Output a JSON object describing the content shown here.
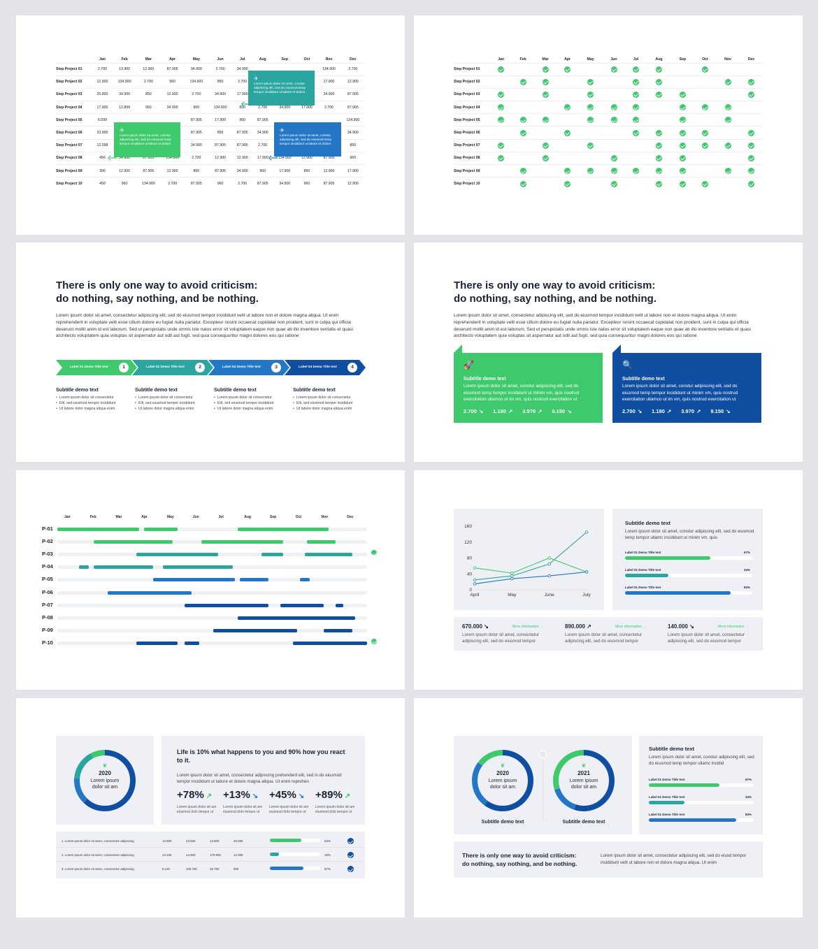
{
  "months": [
    "Jan",
    "Feb",
    "Mar",
    "Apr",
    "May",
    "Jun",
    "Jul",
    "Aug",
    "Sep",
    "Oct",
    "Nov",
    "Dec"
  ],
  "colors": {
    "green": "#3ec96d",
    "teal": "#2aa5a0",
    "blue": "#2377c6",
    "navy": "#0f4ea1",
    "dark": "#1b2333"
  },
  "slide1": {
    "rows": [
      {
        "label": "Step Project 01",
        "values": [
          "2.700",
          "13.900",
          "12.900",
          "87.905",
          "34.900",
          "2.700",
          "34.900",
          "",
          "",
          "",
          "134.900",
          "2.700"
        ]
      },
      {
        "label": "Step Project 02",
        "values": [
          "12.900",
          "134.900",
          "2.700",
          "960",
          "134.900",
          "850",
          "2.700",
          "",
          "",
          "",
          "17.900",
          "12.900"
        ]
      },
      {
        "label": "Step Project 03",
        "values": [
          "25.800",
          "34.900",
          "850",
          "12.900",
          "2.700",
          "34.900",
          "17.900",
          "",
          "",
          "",
          "34.900",
          "87.905"
        ]
      },
      {
        "label": "Step Project 04",
        "values": [
          "17.900",
          "12.899",
          "960",
          "34.900",
          "960",
          "134.900",
          "850",
          "2.700",
          "34.900",
          "17.900",
          "2.700",
          "87.905"
        ]
      },
      {
        "label": "Step Project 05",
        "values": [
          "6.099",
          "",
          "",
          "",
          "87.905",
          "17.900",
          "960",
          "87.905",
          "",
          "",
          "",
          "134.900"
        ]
      },
      {
        "label": "Step Project 06",
        "values": [
          "23.900",
          "",
          "",
          "",
          "87.905",
          "850",
          "87.905",
          "34.900",
          "",
          "",
          "",
          "34.900"
        ]
      },
      {
        "label": "Step Project 07",
        "values": [
          "12.098",
          "",
          "",
          "",
          "34.900",
          "87.905",
          "87.905",
          "2.700",
          "",
          "",
          "",
          "850"
        ]
      },
      {
        "label": "Step Project 08",
        "values": [
          "456",
          "34.900",
          "87.905",
          "134.900",
          "2.700",
          "12.900",
          "12.900",
          "17.900",
          "134.900",
          "12.900",
          "87.905",
          "960"
        ]
      },
      {
        "label": "Step Project 09",
        "values": [
          "300",
          "12.900",
          "87.905",
          "12.900",
          "850",
          "87.905",
          "34.900",
          "960",
          "17.900",
          "850",
          "12.900",
          "17.900"
        ]
      },
      {
        "label": "Step Project 10",
        "values": [
          "450",
          "960",
          "134.900",
          "2.700",
          "87.905",
          "960",
          "2.700",
          "87.905",
          "34.900",
          "960",
          "87.905",
          "12.900"
        ]
      }
    ],
    "callout_teal": "Lorem ipsum dolor sit amet, constur adipiscing elit, sed do eiusmod temp tempor incididunt ut labore et dolore",
    "callout_green": "Lorem ipsum dolor sit amet, constur adipiscing elit, sed do eiusmod temp tempor incididunt ut labore et dolore",
    "callout_blue": "Lorem ipsum dolor sit amet, constur adipiscing elit, sed do eiusmod temp tempor incididunt ut labore et dolore"
  },
  "slide2": {
    "rows": [
      {
        "label": "Step Project 01",
        "checks": [
          1,
          0,
          1,
          1,
          0,
          1,
          1,
          1,
          0,
          1,
          0,
          0
        ]
      },
      {
        "label": "Step Project 02",
        "checks": [
          0,
          1,
          1,
          0,
          1,
          0,
          1,
          1,
          0,
          0,
          1,
          1
        ]
      },
      {
        "label": "Step Project 03",
        "checks": [
          1,
          0,
          1,
          0,
          1,
          0,
          1,
          1,
          1,
          0,
          0,
          1
        ]
      },
      {
        "label": "Step Project 04",
        "checks": [
          1,
          0,
          0,
          1,
          1,
          1,
          1,
          0,
          1,
          1,
          1,
          0
        ]
      },
      {
        "label": "Step Project 05",
        "checks": [
          1,
          1,
          1,
          0,
          1,
          1,
          1,
          0,
          1,
          0,
          1,
          0
        ]
      },
      {
        "label": "Step Project 06",
        "checks": [
          0,
          1,
          0,
          1,
          0,
          0,
          1,
          1,
          1,
          1,
          0,
          1
        ]
      },
      {
        "label": "Step Project 07",
        "checks": [
          1,
          0,
          1,
          0,
          1,
          0,
          0,
          1,
          1,
          1,
          1,
          1
        ]
      },
      {
        "label": "Step Project 08",
        "checks": [
          1,
          0,
          1,
          0,
          0,
          1,
          0,
          1,
          1,
          0,
          0,
          1
        ]
      },
      {
        "label": "Step Project 09",
        "checks": [
          0,
          1,
          0,
          1,
          1,
          1,
          1,
          1,
          1,
          0,
          1,
          1
        ]
      },
      {
        "label": "Step Project 10",
        "checks": [
          0,
          1,
          0,
          1,
          0,
          1,
          0,
          1,
          1,
          1,
          0,
          1
        ]
      }
    ]
  },
  "slide3": {
    "title_line1": "There is only one way to avoid criticism:",
    "title_line2": "do nothing, say nothing, and be nothing.",
    "paragraph": "Lorem ipsum dolor sit amet, consectetur adipiscing elit, sed do eiusmod tempor incididunt velit ut labore non et dolore magna aliqua. Ut enim reprehenderit in voluptate velit esse cillum dolore eu fugiat nulla pariatur. Excepteur nosint occaecat cupidatat non proident, sunt in culpa qui officia deserunt mollit anim id est laborum. Sed ut perspiciatis unde omnis iste natus error sit voluptatem eaque non quae ab illo inventore veritatis et quasi architecto voluptatem quia voluptas sit aspernatur aut odit aut fugit, sed quia consequuntur magni dolores eos qui ratione",
    "steps": [
      {
        "label": "Label 01 Demo Title text",
        "num": "1"
      },
      {
        "label": "Label 02 Demo Title text",
        "num": "2"
      },
      {
        "label": "Label 03 Demo Title text",
        "num": "3"
      },
      {
        "label": "Label 04 Demo Title text",
        "num": "4"
      }
    ],
    "columns": [
      {
        "subtitle": "Subtitle demo text",
        "bullets": [
          "Lorem ipsum dolor sit consectetur",
          "Elit, sed eiusmod tempor incididunt",
          "Ut labore dolor magna aliqua enim"
        ]
      },
      {
        "subtitle": "Subtitle demo text",
        "bullets": [
          "Lorem ipsum dolor sit consectetur",
          "Elit, sed eiusmod tempor incididunt",
          "Ut labore dolor magna aliqua enim"
        ]
      },
      {
        "subtitle": "Subtitle demo text",
        "bullets": [
          "Lorem ipsum dolor sit consectetur",
          "Elit, sed eiusmod tempor incididunt",
          "Ut labore dolor magna aliqua enim"
        ]
      },
      {
        "subtitle": "Subtitle demo text",
        "bullets": [
          "Lorem ipsum dolor sit consectetur",
          "Elit, sed eiusmod tempor incididunt",
          "Ut labore dolor magna aliqua enim"
        ]
      }
    ]
  },
  "slide4": {
    "title_line1": "There is only one way to avoid criticism:",
    "title_line2": "do nothing, say nothing, and be nothing.",
    "paragraph": "Lorem ipsum dolor sit amet, consectetur adipiscing elit, sed do eiusmod tempor incididunt velit ut labore non et dolore magna aliqua. Ut enim reprehenderit in voluptate velit esse cillum dolore eu fugiat nulla pariatur. Excepteur nosint occaecat cupidatat non proident, sunt in culpa qui officia deserunt mollit anim id est laborum. Sed ut perspiciatis unde omnis iste natus error sit voluptatem eaque non quae ab illo inventore veritatis et quasi architecto voluptatem quia voluptas sit aspernatur aut odit aut fugit, sed quia consequuntur magni dolores eos qui ratione",
    "card_left": {
      "title": "Subtitle demo text",
      "text": "Lorem ipsum dolor sit amet, constur adipiscing elit, sed do eiusmod temp tempor incididunt ut minim vm, quis nostrud exercitation ullamco ut im vm, quis nostrud exercitation ut",
      "n1": "2.700 ↘",
      "n2": "1.180 ↗",
      "n3": "3.970 ↗",
      "n4": "9.150 ↘"
    },
    "card_right": {
      "title": "Subtitle demo text",
      "text": "Lorem ipsum dolor sit amet, constur adipiscing elit, sed do eiusmod temp tempor incididunt ut minim vm, quis nostrud exercitation ullamco ut im vm, quis nostrud exercitation ut",
      "n1": "2.700 ↘",
      "n2": "1.180 ↗",
      "n3": "3.970 ↗",
      "n4": "9.150 ↘"
    }
  },
  "slide5": {
    "rows": [
      {
        "label": "P-01",
        "bars": [
          [
            0,
            3.4,
            "green"
          ],
          [
            3.6,
            5,
            "green"
          ],
          [
            7.5,
            11.3,
            "green"
          ]
        ]
      },
      {
        "label": "P-02",
        "bars": [
          [
            1.5,
            4.8,
            "green"
          ],
          [
            6,
            9.4,
            "green"
          ],
          [
            10.4,
            11.6,
            "green"
          ]
        ]
      },
      {
        "label": "P-03",
        "bars": [
          [
            3.3,
            6.7,
            "teal"
          ],
          [
            8.5,
            9.4,
            "teal"
          ],
          [
            10.3,
            12.3,
            "teal"
          ]
        ],
        "check": true
      },
      {
        "label": "P-04",
        "bars": [
          [
            0.9,
            1.3,
            "teal"
          ],
          [
            1.5,
            4,
            "teal"
          ],
          [
            4.4,
            7.3,
            "teal"
          ]
        ]
      },
      {
        "label": "P-05",
        "bars": [
          [
            4,
            7.4,
            "blue"
          ],
          [
            7.6,
            8.8,
            "blue"
          ],
          [
            10.1,
            10.5,
            "blue"
          ]
        ]
      },
      {
        "label": "P-06",
        "bars": [
          [
            2.1,
            5.6,
            "blue"
          ]
        ]
      },
      {
        "label": "P-07",
        "bars": [
          [
            5.3,
            8.8,
            "navy"
          ],
          [
            9.3,
            11.1,
            "navy"
          ],
          [
            11.6,
            11.9,
            "navy"
          ]
        ]
      },
      {
        "label": "P-08",
        "bars": [
          [
            7.5,
            12.4,
            "navy"
          ]
        ]
      },
      {
        "label": "P-09",
        "bars": [
          [
            6.5,
            10,
            "navy"
          ],
          [
            11.1,
            12.3,
            "navy"
          ]
        ]
      },
      {
        "label": "P-10",
        "bars": [
          [
            3.3,
            5,
            "navy"
          ],
          [
            5.3,
            5.9,
            "navy"
          ],
          [
            9.8,
            12.9,
            "navy"
          ]
        ],
        "check": true
      }
    ]
  },
  "slide6": {
    "chart_data": {
      "type": "line",
      "x": [
        "April",
        "May",
        "June",
        "July"
      ],
      "ylim": [
        0,
        160
      ],
      "yticks": [
        "0",
        "40",
        "80",
        "120",
        "160"
      ],
      "series": [
        {
          "values": [
            25,
            35,
            65,
            145
          ],
          "color": "#2aa5a0"
        },
        {
          "values": [
            55,
            42,
            80,
            45
          ],
          "color": "#3ec96d"
        },
        {
          "values": [
            15,
            28,
            35,
            45
          ],
          "color": "#2377c6"
        }
      ]
    },
    "panel_title": "Subtitle demo text",
    "panel_text": "Lorem ipsum dolor sit amet, constur adipiscing elit, sed do eiusmod temp tempor ullamc incididunt ut minim vm, quis",
    "bars": [
      {
        "label": "Label 01 Demo Title text",
        "value": "67%",
        "pct": 67,
        "color": "#3ec96d"
      },
      {
        "label": "Label 01 Demo Title text",
        "value": "34%",
        "pct": 34,
        "color": "#2aa5a0"
      },
      {
        "label": "Label 01 Demo Title text",
        "value": "83%",
        "pct": 83,
        "color": "#2377c6"
      }
    ],
    "kpis": [
      {
        "value": "670.000 ↘",
        "more": "More information →",
        "text": "Lorem ipsum dolor sit amet, consectetur adipiscing elit, sed do eiusmod tempor"
      },
      {
        "value": "890.000 ↗",
        "more": "More information →",
        "text": "Lorem ipsum dolor sit amet, consectetur adipiscing elit, sed do eiusmod tempor"
      },
      {
        "value": "140.000 ↘",
        "more": "More information →",
        "text": "Lorem ipsum dolor sit amet, consectetur adipiscing elit, sed do eiusmod tempor"
      }
    ]
  },
  "slide7": {
    "donut": {
      "year": "2020",
      "text1": "Lorem ipsum",
      "text2": "dolor sit am"
    },
    "title": "Life is 10% what happens to you and 90% how you react to it.",
    "paragraph": "Lorem ipsum dolor sit amet, consectetur adipiscing prehenderit elit, sed in do eiusmod tempor incididunt ut labore et dolore magna aliqua. Ut enim reprehen",
    "stats": [
      {
        "value": "+78%",
        "arrow": "↗",
        "text": "Lorem ipsum dolor sit am eiusmod dolo tempor ut"
      },
      {
        "value": "+13%",
        "arrow": "↘",
        "text": "Lorem ipsum dolor sit am eiusmod dolo tempor ut"
      },
      {
        "value": "+45%",
        "arrow": "↘",
        "text": "Lorem ipsum dolor sit am eiusmod dolo tempor ut"
      },
      {
        "value": "+89%",
        "arrow": "↗",
        "text": "Lorem ipsum dolor sit am eiusmod dolo tempor ut"
      }
    ],
    "table": [
      {
        "label": "1. Lorem ipsum dolor sit amet, consectetur adipiscing",
        "c1": "13.900",
        "c2": "23.930",
        "c3": "13.900",
        "c4": "25.930",
        "pct": 62,
        "pv": "62%",
        "color": "#3ec96d"
      },
      {
        "label": "2. Lorem ipsum dolor sit amet, consectetur adipiscing",
        "c1": "13.190",
        "c2": "14.900",
        "c3": "170.900",
        "c4": "12.099",
        "pct": 18,
        "pv": "18%",
        "color": "#2aa5a0"
      },
      {
        "label": "3. Lorem ipsum dolor sit amet, consectetur adipiscing",
        "c1": "8.120",
        "c2": "100.750",
        "c3": "25.780",
        "c4": "908",
        "pct": 67,
        "pv": "67%",
        "color": "#2377c6"
      }
    ]
  },
  "slide8": {
    "donut1": {
      "year": "2020",
      "text1": "Lorem ipsum",
      "text2": "dolor sit am",
      "caption": "Subtitle demo text"
    },
    "donut2": {
      "year": "2021",
      "text1": "Lorem ipsum",
      "text2": "dolor sit am",
      "caption": "Subtitle demo text"
    },
    "panel_title": "Subtitle demo text",
    "panel_text": "Lorem ipsum dolor sit amet, constur adipiscing elit, sed do eiusmod temp tempor ullamc incidid",
    "bars": [
      {
        "label": "Label 01 Demo Title text",
        "value": "67%",
        "pct": 67,
        "color": "#3ec96d"
      },
      {
        "label": "Label 01 Demo Title text",
        "value": "34%",
        "pct": 34,
        "color": "#2aa5a0"
      },
      {
        "label": "Label 01 Demo Title text",
        "value": "83%",
        "pct": 83,
        "color": "#2377c6"
      }
    ],
    "quote_line1": "There is only one way to avoid criticism:",
    "quote_line2": "do nothing, say nothing, and be nothing.",
    "quote_text": "Lorem ipsum dolor sit amet, consectetur adipiscing elit, sed do eiusd tempor incididunt velit ut labore non et dolore magna aliqua. Ut enim"
  }
}
